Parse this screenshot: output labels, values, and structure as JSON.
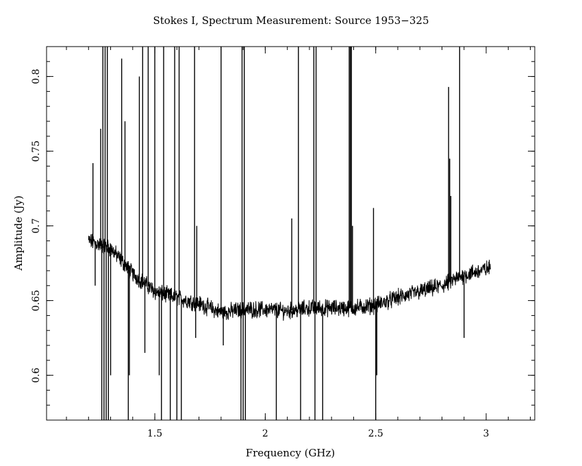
{
  "chart_data": {
    "type": "line",
    "title": "Stokes I, Spectrum Measurement: Source 1953−325",
    "xlabel": "Frequency (GHz)",
    "ylabel": "Amplitude (Jy)",
    "xlim": [
      1.01,
      3.22
    ],
    "ylim": [
      0.57,
      0.82
    ],
    "x_ticks": [
      {
        "value": 1.5,
        "label": "1.5"
      },
      {
        "value": 2.0,
        "label": "2"
      },
      {
        "value": 2.5,
        "label": "2.5"
      },
      {
        "value": 3.0,
        "label": "3"
      }
    ],
    "y_ticks": [
      {
        "value": 0.6,
        "label": "0.6"
      },
      {
        "value": 0.65,
        "label": "0.65"
      },
      {
        "value": 0.7,
        "label": "0.7"
      },
      {
        "value": 0.75,
        "label": "0.75"
      },
      {
        "value": 0.8,
        "label": "0.8"
      }
    ],
    "x_minor_step": 0.1,
    "y_minor_step": 0.01,
    "grid": false,
    "series": [
      {
        "color": "#000000",
        "x_start": 1.2,
        "x_end": 3.02,
        "baseline": [
          [
            1.2,
            0.69
          ],
          [
            1.3,
            0.685
          ],
          [
            1.4,
            0.668
          ],
          [
            1.5,
            0.656
          ],
          [
            1.6,
            0.652
          ],
          [
            1.7,
            0.648
          ],
          [
            1.8,
            0.642
          ],
          [
            1.9,
            0.644
          ],
          [
            2.0,
            0.644
          ],
          [
            2.1,
            0.643
          ],
          [
            2.2,
            0.645
          ],
          [
            2.3,
            0.645
          ],
          [
            2.4,
            0.645
          ],
          [
            2.5,
            0.647
          ],
          [
            2.6,
            0.652
          ],
          [
            2.7,
            0.656
          ],
          [
            2.8,
            0.66
          ],
          [
            2.9,
            0.667
          ],
          [
            3.0,
            0.671
          ],
          [
            3.02,
            0.672
          ]
        ],
        "noise": 0.0045,
        "spikes": [
          {
            "x": 1.22,
            "y": 0.742
          },
          {
            "x": 1.23,
            "y": 0.66
          },
          {
            "x": 1.255,
            "y": 0.765
          },
          {
            "x": 1.26,
            "y": 0.57
          },
          {
            "x": 1.265,
            "y": 0.82
          },
          {
            "x": 1.27,
            "y": 0.57
          },
          {
            "x": 1.275,
            "y": 0.82
          },
          {
            "x": 1.28,
            "y": 0.57
          },
          {
            "x": 1.285,
            "y": 0.82
          },
          {
            "x": 1.29,
            "y": 0.57
          },
          {
            "x": 1.3,
            "y": 0.6
          },
          {
            "x": 1.35,
            "y": 0.812
          },
          {
            "x": 1.365,
            "y": 0.77
          },
          {
            "x": 1.38,
            "y": 0.57
          },
          {
            "x": 1.385,
            "y": 0.6
          },
          {
            "x": 1.43,
            "y": 0.8
          },
          {
            "x": 1.445,
            "y": 0.82
          },
          {
            "x": 1.455,
            "y": 0.615
          },
          {
            "x": 1.47,
            "y": 0.82
          },
          {
            "x": 1.5,
            "y": 0.82
          },
          {
            "x": 1.52,
            "y": 0.6
          },
          {
            "x": 1.53,
            "y": 0.57
          },
          {
            "x": 1.54,
            "y": 0.82
          },
          {
            "x": 1.57,
            "y": 0.57
          },
          {
            "x": 1.59,
            "y": 0.82
          },
          {
            "x": 1.6,
            "y": 0.57
          },
          {
            "x": 1.61,
            "y": 0.82
          },
          {
            "x": 1.62,
            "y": 0.57
          },
          {
            "x": 1.68,
            "y": 0.82
          },
          {
            "x": 1.685,
            "y": 0.625
          },
          {
            "x": 1.69,
            "y": 0.7
          },
          {
            "x": 1.8,
            "y": 0.82
          },
          {
            "x": 1.81,
            "y": 0.62
          },
          {
            "x": 1.89,
            "y": 0.57
          },
          {
            "x": 1.895,
            "y": 0.82
          },
          {
            "x": 1.9,
            "y": 0.57
          },
          {
            "x": 1.905,
            "y": 0.82
          },
          {
            "x": 1.91,
            "y": 0.57
          },
          {
            "x": 2.05,
            "y": 0.57
          },
          {
            "x": 2.12,
            "y": 0.705
          },
          {
            "x": 2.15,
            "y": 0.82
          },
          {
            "x": 2.16,
            "y": 0.57
          },
          {
            "x": 2.22,
            "y": 0.82
          },
          {
            "x": 2.225,
            "y": 0.57
          },
          {
            "x": 2.23,
            "y": 0.82
          },
          {
            "x": 2.26,
            "y": 0.57
          },
          {
            "x": 2.38,
            "y": 0.82
          },
          {
            "x": 2.385,
            "y": 0.82
          },
          {
            "x": 2.39,
            "y": 0.82
          },
          {
            "x": 2.395,
            "y": 0.7
          },
          {
            "x": 2.49,
            "y": 0.712
          },
          {
            "x": 2.5,
            "y": 0.57
          },
          {
            "x": 2.505,
            "y": 0.6
          },
          {
            "x": 2.83,
            "y": 0.793
          },
          {
            "x": 2.835,
            "y": 0.745
          },
          {
            "x": 2.84,
            "y": 0.72
          },
          {
            "x": 2.88,
            "y": 0.82
          },
          {
            "x": 2.9,
            "y": 0.625
          }
        ]
      }
    ]
  }
}
